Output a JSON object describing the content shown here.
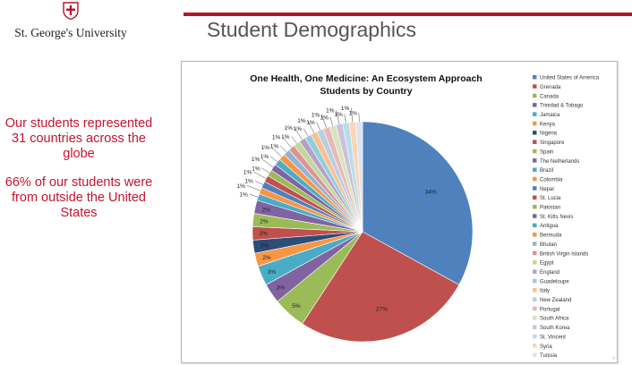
{
  "header": {
    "university": "St. George's University",
    "title": "Student Demographics",
    "accent_color": "#b5152b"
  },
  "blurb": {
    "paragraph1": "Our students represented 31 countries across the globe",
    "paragraph2": "66% of our students were from outside the United States"
  },
  "chart_data": {
    "type": "pie",
    "title": "One Health, One Medicine: An Ecosystem Approach",
    "subtitle": "Students by Country",
    "legend_position": "right",
    "slices": [
      {
        "label": "United States of America",
        "value": 34,
        "display": "34%",
        "color": "#4f81bd"
      },
      {
        "label": "Grenada",
        "value": 27,
        "display": "27%",
        "color": "#c0504d"
      },
      {
        "label": "Canada",
        "value": 5,
        "display": "5%",
        "color": "#9bbb59"
      },
      {
        "label": "Trinidad & Tobago",
        "value": 3,
        "display": "3%",
        "color": "#8064a2"
      },
      {
        "label": "Jamaica",
        "value": 3,
        "display": "3%",
        "color": "#4bacc6"
      },
      {
        "label": "Kenya",
        "value": 2,
        "display": "2%",
        "color": "#f79646"
      },
      {
        "label": "Nigeria",
        "value": 2,
        "display": "2%",
        "color": "#2c4d75"
      },
      {
        "label": "Singapore",
        "value": 2,
        "display": "2%",
        "color": "#c0504d"
      },
      {
        "label": "Spain",
        "value": 2,
        "display": "2%",
        "color": "#9bbb59"
      },
      {
        "label": "The Netherlands",
        "value": 2,
        "display": "2%",
        "color": "#8064a2"
      },
      {
        "label": "Brazil",
        "value": 1,
        "display": "1%",
        "color": "#4bacc6"
      },
      {
        "label": "Colombia",
        "value": 1,
        "display": "1%",
        "color": "#f79646"
      },
      {
        "label": "Nepal",
        "value": 1,
        "display": "1%",
        "color": "#4f81bd"
      },
      {
        "label": "St. Lucia",
        "value": 1,
        "display": "1%",
        "color": "#c0504d"
      },
      {
        "label": "Pakistan",
        "value": 1,
        "display": "1%",
        "color": "#9bbb59"
      },
      {
        "label": "St. Kitts Nevis",
        "value": 1,
        "display": "1%",
        "color": "#8064a2"
      },
      {
        "label": "Antigua",
        "value": 1,
        "display": "1%",
        "color": "#4bacc6"
      },
      {
        "label": "Bermuda",
        "value": 1,
        "display": "1%",
        "color": "#f79646"
      },
      {
        "label": "Bhutan",
        "value": 1,
        "display": "1%",
        "color": "#95b3d7"
      },
      {
        "label": "British Virgin Islands",
        "value": 1,
        "display": "1%",
        "color": "#d99694"
      },
      {
        "label": "Egypt",
        "value": 1,
        "display": "1%",
        "color": "#c3d69b"
      },
      {
        "label": "England",
        "value": 1,
        "display": "1%",
        "color": "#b3a2c7"
      },
      {
        "label": "Guadeloupe",
        "value": 1,
        "display": "1%",
        "color": "#93cddd"
      },
      {
        "label": "Italy",
        "value": 1,
        "display": "1%",
        "color": "#fac08f"
      },
      {
        "label": "New Zealand",
        "value": 1,
        "display": "1%",
        "color": "#b9cde5"
      },
      {
        "label": "Portugal",
        "value": 1,
        "display": "1%",
        "color": "#e6b9b8"
      },
      {
        "label": "South Africa",
        "value": 1,
        "display": "1%",
        "color": "#d7e4bd"
      },
      {
        "label": "South Korea",
        "value": 1,
        "display": "1%",
        "color": "#ccc1da"
      },
      {
        "label": "St. Vincent",
        "value": 1,
        "display": "1%",
        "color": "#b7dee8"
      },
      {
        "label": "Syria",
        "value": 1,
        "display": "1%",
        "color": "#fcd5b5"
      },
      {
        "label": "Tunisia",
        "value": 1,
        "display": "1%",
        "color": "#dbe5f1"
      }
    ]
  }
}
